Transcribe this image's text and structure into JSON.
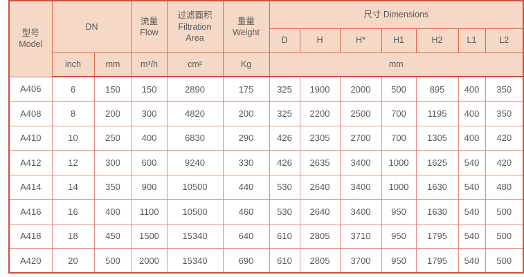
{
  "colors": {
    "header_bg": "#f5d8c6",
    "border_outer": "#d0503a",
    "border_header": "#dd6a4e",
    "border_data": "#e48e80",
    "text": "#595959"
  },
  "table": {
    "header": {
      "model_zh": "型号",
      "model_en": "Model",
      "dn": "DN",
      "flow_zh": "流量",
      "flow_en": "Flow",
      "filtration_zh": "过滤面积",
      "filtration_en1": "Filtration",
      "filtration_en2": "Area",
      "weight_zh": "重量",
      "weight_en": "Weight",
      "dimensions": "尺寸 Dimensions",
      "dim_cols": [
        "D",
        "H",
        "H*",
        "H1",
        "H2",
        "L1",
        "L2"
      ],
      "units": {
        "inch": "inch",
        "mm": "mm",
        "flow": "m³/h",
        "area": "cm²",
        "weight": "Kg",
        "dims": "mm"
      }
    },
    "rows": [
      {
        "model": "A406",
        "values": [
          "6",
          "150",
          "150",
          "2890",
          "175",
          "325",
          "1900",
          "2000",
          "500",
          "895",
          "400",
          "350"
        ]
      },
      {
        "model": "A408",
        "values": [
          "8",
          "200",
          "300",
          "4820",
          "200",
          "325",
          "2200",
          "2500",
          "700",
          "1195",
          "400",
          "350"
        ]
      },
      {
        "model": "A410",
        "values": [
          "10",
          "250",
          "400",
          "6830",
          "290",
          "426",
          "2305",
          "2700",
          "700",
          "1305",
          "400",
          "420"
        ]
      },
      {
        "model": "A412",
        "values": [
          "12",
          "300",
          "600",
          "9240",
          "330",
          "426",
          "2635",
          "3400",
          "1000",
          "1625",
          "540",
          "420"
        ]
      },
      {
        "model": "A414",
        "values": [
          "14",
          "350",
          "900",
          "10500",
          "440",
          "530",
          "2640",
          "3400",
          "1000",
          "1630",
          "540",
          "480"
        ]
      },
      {
        "model": "A416",
        "values": [
          "16",
          "400",
          "1100",
          "10500",
          "460",
          "530",
          "2640",
          "3400",
          "950",
          "1630",
          "540",
          "500"
        ]
      },
      {
        "model": "A418",
        "values": [
          "18",
          "450",
          "1500",
          "15340",
          "640",
          "610",
          "2805",
          "3710",
          "950",
          "1795",
          "540",
          "500"
        ]
      },
      {
        "model": "A420",
        "values": [
          "20",
          "500",
          "2000",
          "15340",
          "690",
          "610",
          "2805",
          "3700",
          "950",
          "1795",
          "540",
          "500"
        ]
      }
    ]
  }
}
